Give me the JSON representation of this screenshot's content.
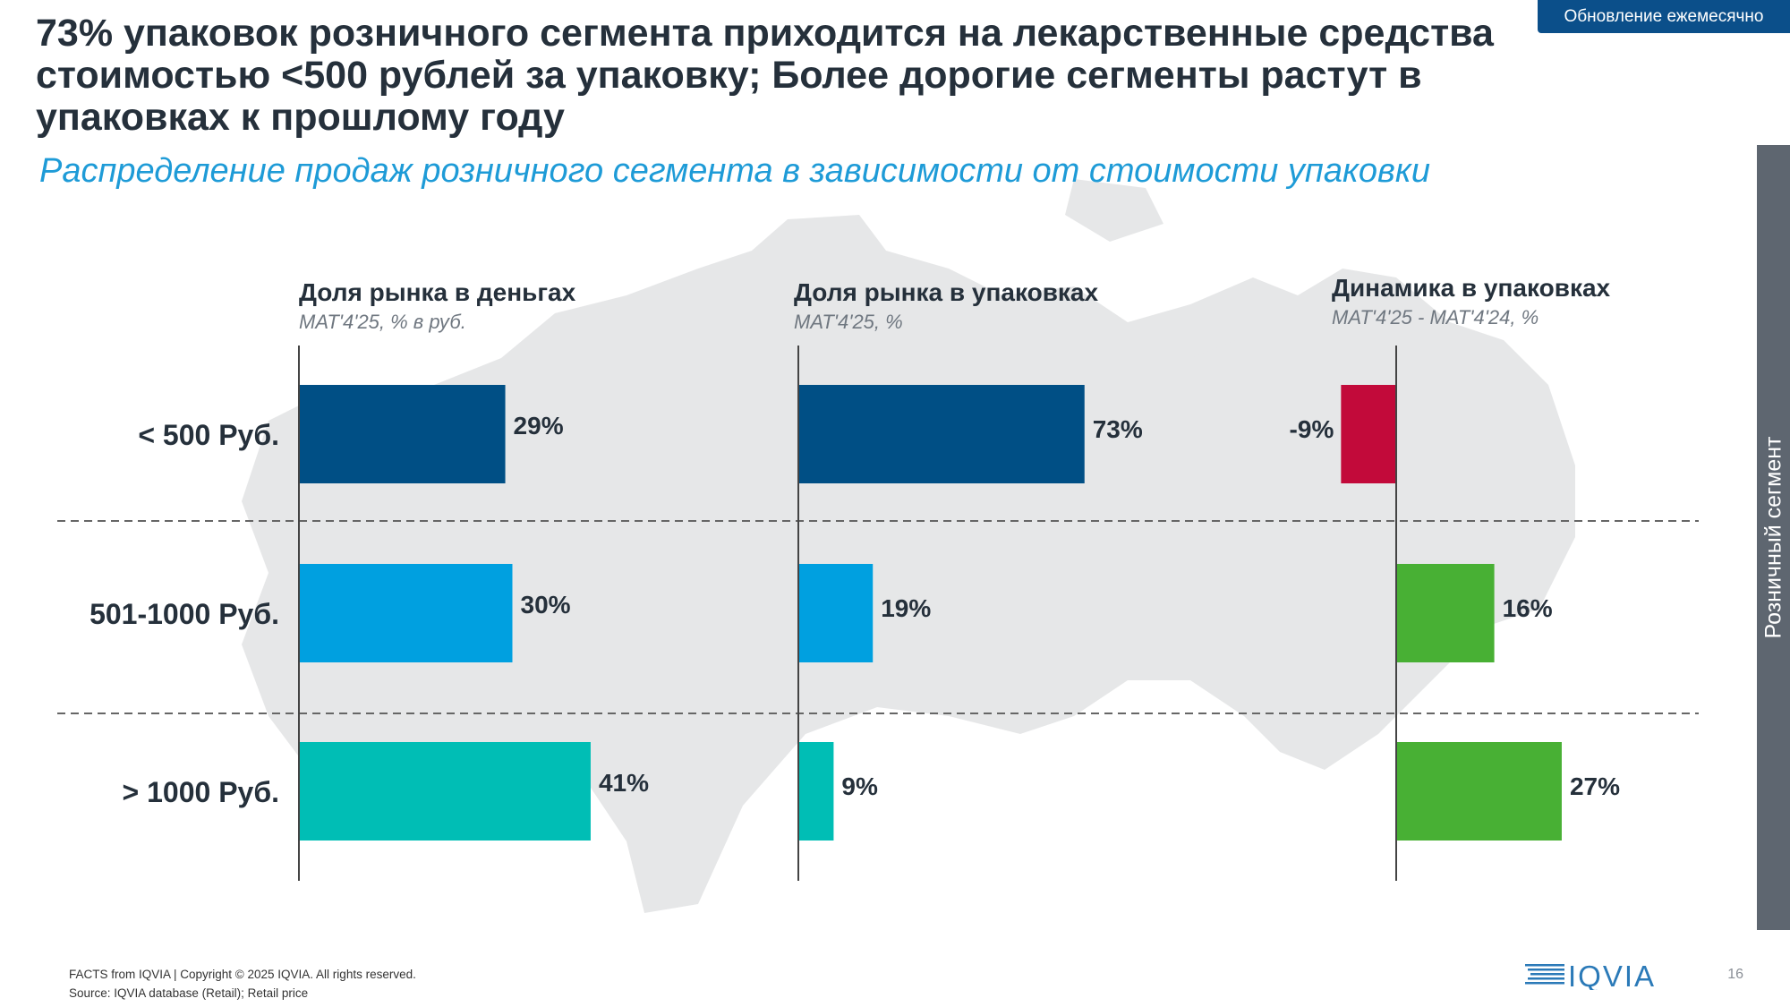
{
  "badge": "Обновление ежемесячно",
  "title": "73% упаковок розничного сегмента приходится на лекарственные средства стоимостью <500 рублей за упаковку; Более дорогие сегменты растут в упаковках к прошлому году",
  "subtitle": "Распределение продаж розничного сегмента в зависимости от стоимости упаковки",
  "side_tab": "Розничный сегмент",
  "panels": [
    {
      "heading": "Доля рынка в деньгах",
      "sub": "MAT'4'25, % в руб."
    },
    {
      "heading": "Доля рынка в упаковках",
      "sub": "MAT'4'25, %"
    },
    {
      "heading": "Динамика в упаковках",
      "sub": "MAT'4'25 - MAT'4'24, %"
    }
  ],
  "chart_data": {
    "type": "bar",
    "orientation": "horizontal",
    "categories": [
      "< 500 Руб.",
      "501-1000 Руб.",
      "> 1000 Руб."
    ],
    "category_colors": [
      "#004f85",
      "#00a0e0",
      "#00beb5"
    ],
    "positive_color": "#48b034",
    "negative_color": "#c20a3a",
    "series": [
      {
        "name": "Доля рынка в деньгах",
        "values": [
          29,
          30,
          41
        ],
        "labels": [
          "29%",
          "30%",
          "41%"
        ]
      },
      {
        "name": "Доля рынка в упаковках",
        "values": [
          73,
          19,
          9
        ],
        "labels": [
          "73%",
          "19%",
          "9%"
        ]
      },
      {
        "name": "Динамика в упаковках",
        "values": [
          -9,
          16,
          27
        ],
        "labels": [
          "-9%",
          "16%",
          "27%"
        ]
      }
    ]
  },
  "footer": {
    "line1": "FACTS from IQVIA | Copyright © 2025 IQVIA. All rights reserved.",
    "line2": "Source: IQVIA database (Retail); Retail price"
  },
  "logo_text": "IQVIA",
  "page_number": "16"
}
